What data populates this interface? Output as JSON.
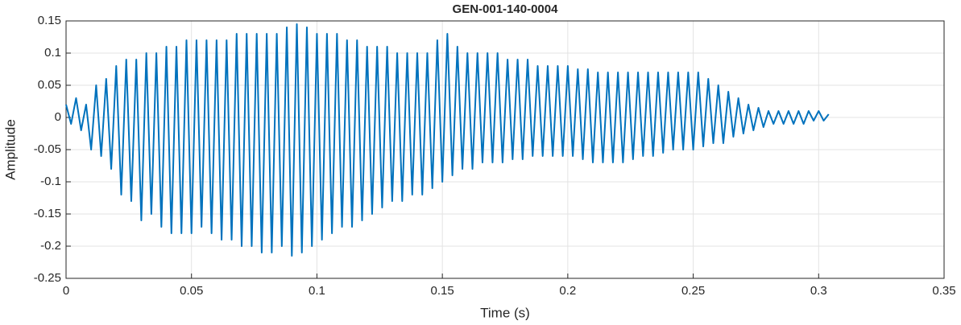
{
  "chart_data": {
    "type": "line",
    "title": "GEN-001-140-0004",
    "x_label": "Time (s)",
    "y_label": "Amplitude",
    "xlim": [
      0,
      0.35
    ],
    "xticks": [
      0,
      0.05,
      0.1,
      0.15,
      0.2,
      0.25,
      0.3,
      0.35
    ],
    "ylim": [
      -0.25,
      0.15
    ],
    "yticks": [
      -0.25,
      -0.2,
      -0.15,
      -0.1,
      -0.05,
      0,
      0.05,
      0.1,
      0.15
    ],
    "grid": true,
    "series": [
      {
        "color": "#0072bd",
        "x": [
          0,
          0.002,
          0.004,
          0.006,
          0.008,
          0.01,
          0.012,
          0.014,
          0.016,
          0.018,
          0.02,
          0.022,
          0.024,
          0.026,
          0.028,
          0.03,
          0.032,
          0.034,
          0.036,
          0.038,
          0.04,
          0.042,
          0.044,
          0.046,
          0.048,
          0.05,
          0.052,
          0.054,
          0.056,
          0.058,
          0.06,
          0.062,
          0.064,
          0.066,
          0.068,
          0.07,
          0.072,
          0.074,
          0.076,
          0.078,
          0.08,
          0.082,
          0.084,
          0.086,
          0.088,
          0.09,
          0.092,
          0.094,
          0.096,
          0.098,
          0.1,
          0.102,
          0.104,
          0.106,
          0.108,
          0.11,
          0.112,
          0.114,
          0.116,
          0.118,
          0.12,
          0.122,
          0.124,
          0.126,
          0.128,
          0.13,
          0.132,
          0.134,
          0.136,
          0.138,
          0.14,
          0.142,
          0.144,
          0.146,
          0.148,
          0.15,
          0.152,
          0.154,
          0.156,
          0.158,
          0.16,
          0.162,
          0.164,
          0.166,
          0.168,
          0.17,
          0.172,
          0.174,
          0.176,
          0.178,
          0.18,
          0.182,
          0.184,
          0.186,
          0.188,
          0.19,
          0.192,
          0.194,
          0.196,
          0.198,
          0.2,
          0.202,
          0.204,
          0.206,
          0.208,
          0.21,
          0.212,
          0.214,
          0.216,
          0.218,
          0.22,
          0.222,
          0.224,
          0.226,
          0.228,
          0.23,
          0.232,
          0.234,
          0.236,
          0.238,
          0.24,
          0.242,
          0.244,
          0.246,
          0.248,
          0.25,
          0.252,
          0.254,
          0.256,
          0.258,
          0.26,
          0.262,
          0.264,
          0.266,
          0.268,
          0.27,
          0.272,
          0.274,
          0.276,
          0.278,
          0.28,
          0.282,
          0.284,
          0.286,
          0.288,
          0.29,
          0.292,
          0.294,
          0.296,
          0.298,
          0.3,
          0.302,
          0.304
        ],
        "values": [
          0.02,
          -0.01,
          0.03,
          -0.02,
          0.02,
          -0.05,
          0.05,
          -0.06,
          0.06,
          -0.08,
          0.08,
          -0.12,
          0.09,
          -0.13,
          0.09,
          -0.16,
          0.1,
          -0.15,
          0.1,
          -0.17,
          0.11,
          -0.18,
          0.11,
          -0.18,
          0.12,
          -0.18,
          0.12,
          -0.17,
          0.12,
          -0.18,
          0.12,
          -0.19,
          0.12,
          -0.19,
          0.13,
          -0.2,
          0.13,
          -0.2,
          0.13,
          -0.21,
          0.13,
          -0.21,
          0.13,
          -0.2,
          0.14,
          -0.215,
          0.145,
          -0.21,
          0.14,
          -0.2,
          0.13,
          -0.19,
          0.13,
          -0.18,
          0.13,
          -0.17,
          0.12,
          -0.17,
          0.12,
          -0.16,
          0.11,
          -0.15,
          0.11,
          -0.14,
          0.11,
          -0.13,
          0.1,
          -0.13,
          0.1,
          -0.12,
          0.1,
          -0.12,
          0.1,
          -0.11,
          0.12,
          -0.1,
          0.13,
          -0.09,
          0.11,
          -0.08,
          0.1,
          -0.08,
          0.1,
          -0.07,
          0.1,
          -0.07,
          0.1,
          -0.07,
          0.09,
          -0.065,
          0.09,
          -0.065,
          0.09,
          -0.06,
          0.08,
          -0.06,
          0.08,
          -0.06,
          0.08,
          -0.06,
          0.08,
          -0.06,
          0.075,
          -0.065,
          0.075,
          -0.07,
          0.07,
          -0.07,
          0.07,
          -0.07,
          0.07,
          -0.07,
          0.07,
          -0.065,
          0.07,
          -0.06,
          0.07,
          -0.06,
          0.07,
          -0.055,
          0.07,
          -0.05,
          0.07,
          -0.05,
          0.07,
          -0.05,
          0.07,
          -0.045,
          0.06,
          -0.04,
          0.05,
          -0.04,
          0.04,
          -0.03,
          0.03,
          -0.025,
          0.02,
          -0.02,
          0.015,
          -0.015,
          0.01,
          -0.01,
          0.01,
          -0.01,
          0.01,
          -0.01,
          0.01,
          -0.01,
          0.01,
          -0.005,
          0.01,
          -0.005,
          0.005
        ]
      }
    ]
  }
}
